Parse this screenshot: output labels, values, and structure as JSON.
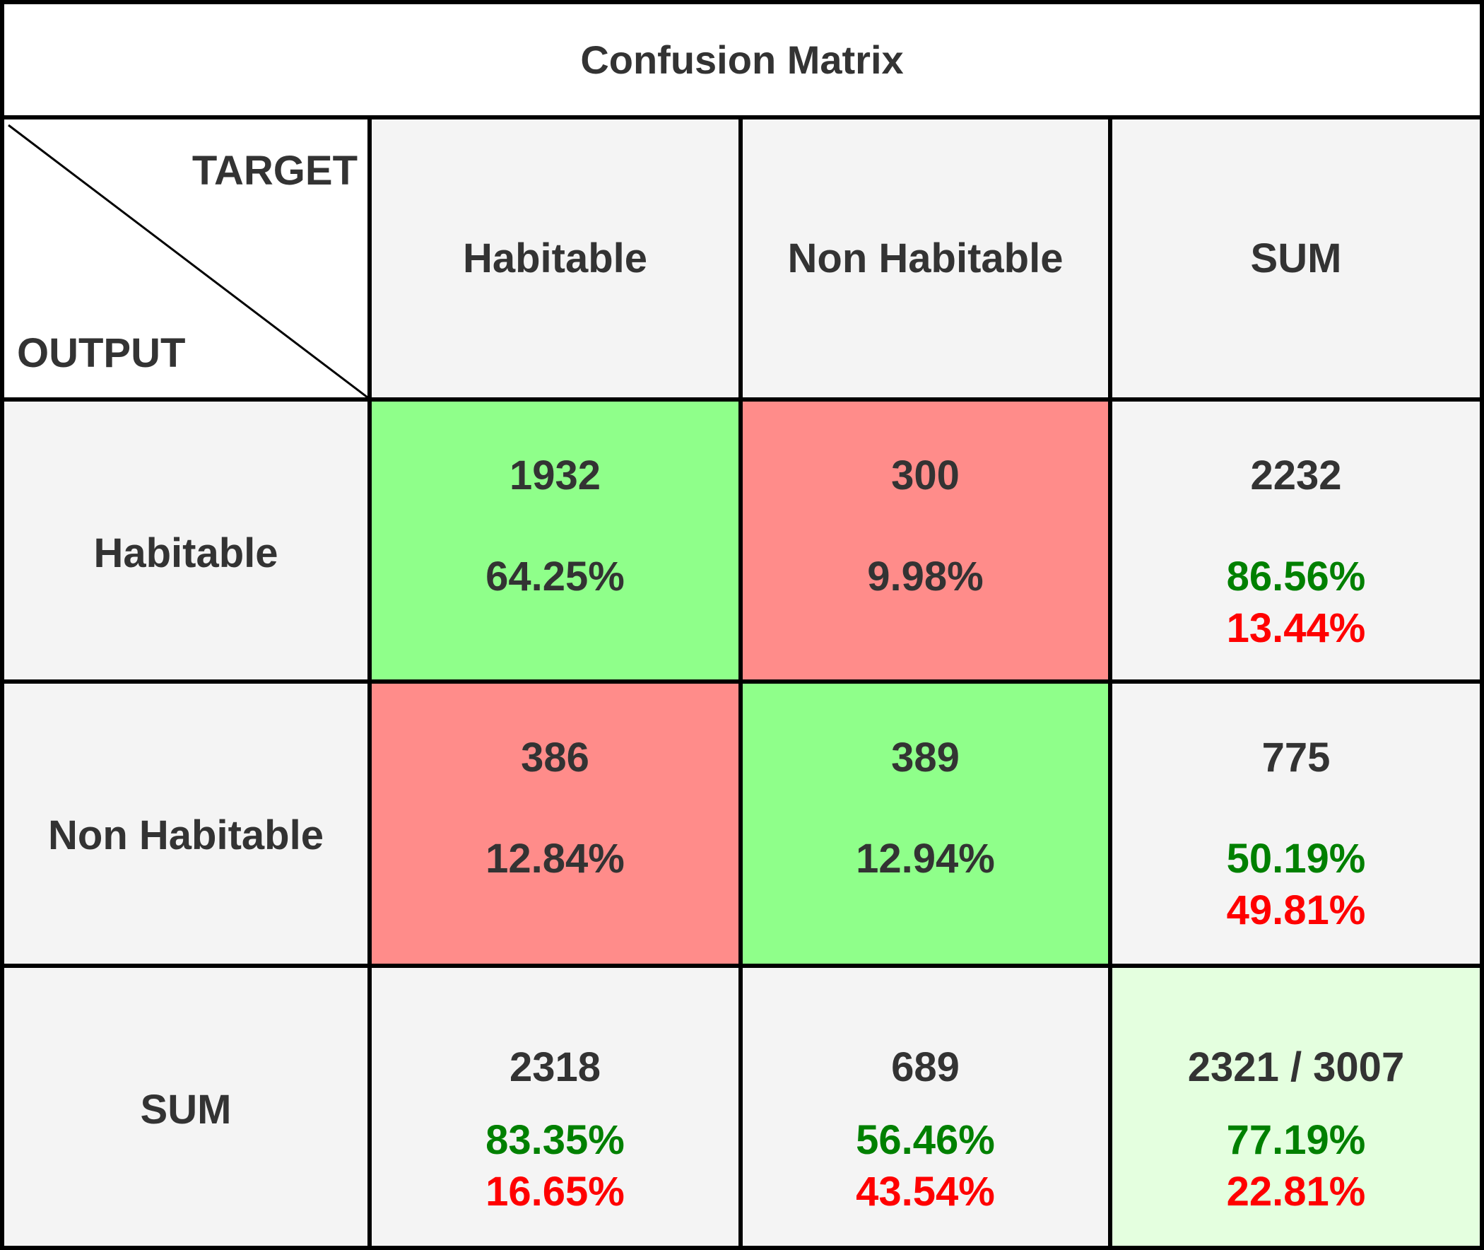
{
  "title": "Confusion Matrix",
  "corner": {
    "target": "TARGET",
    "output": "OUTPUT"
  },
  "columns": [
    "Habitable",
    "Non Habitable",
    "SUM"
  ],
  "rows": [
    {
      "label": "Habitable",
      "cells": [
        {
          "count": "1932",
          "percent": "64.25%"
        },
        {
          "count": "300",
          "percent": "9.98%"
        },
        {
          "count": "2232",
          "correct": "86.56%",
          "wrong": "13.44%"
        }
      ]
    },
    {
      "label": "Non Habitable",
      "cells": [
        {
          "count": "386",
          "percent": "12.84%"
        },
        {
          "count": "389",
          "percent": "12.94%"
        },
        {
          "count": "775",
          "correct": "50.19%",
          "wrong": "49.81%"
        }
      ]
    },
    {
      "label": "SUM",
      "cells": [
        {
          "count": "2318",
          "correct": "83.35%",
          "wrong": "16.65%"
        },
        {
          "count": "689",
          "correct": "56.46%",
          "wrong": "43.54%"
        },
        {
          "count": "2321 / 3007",
          "correct": "77.19%",
          "wrong": "22.81%"
        }
      ]
    }
  ]
}
